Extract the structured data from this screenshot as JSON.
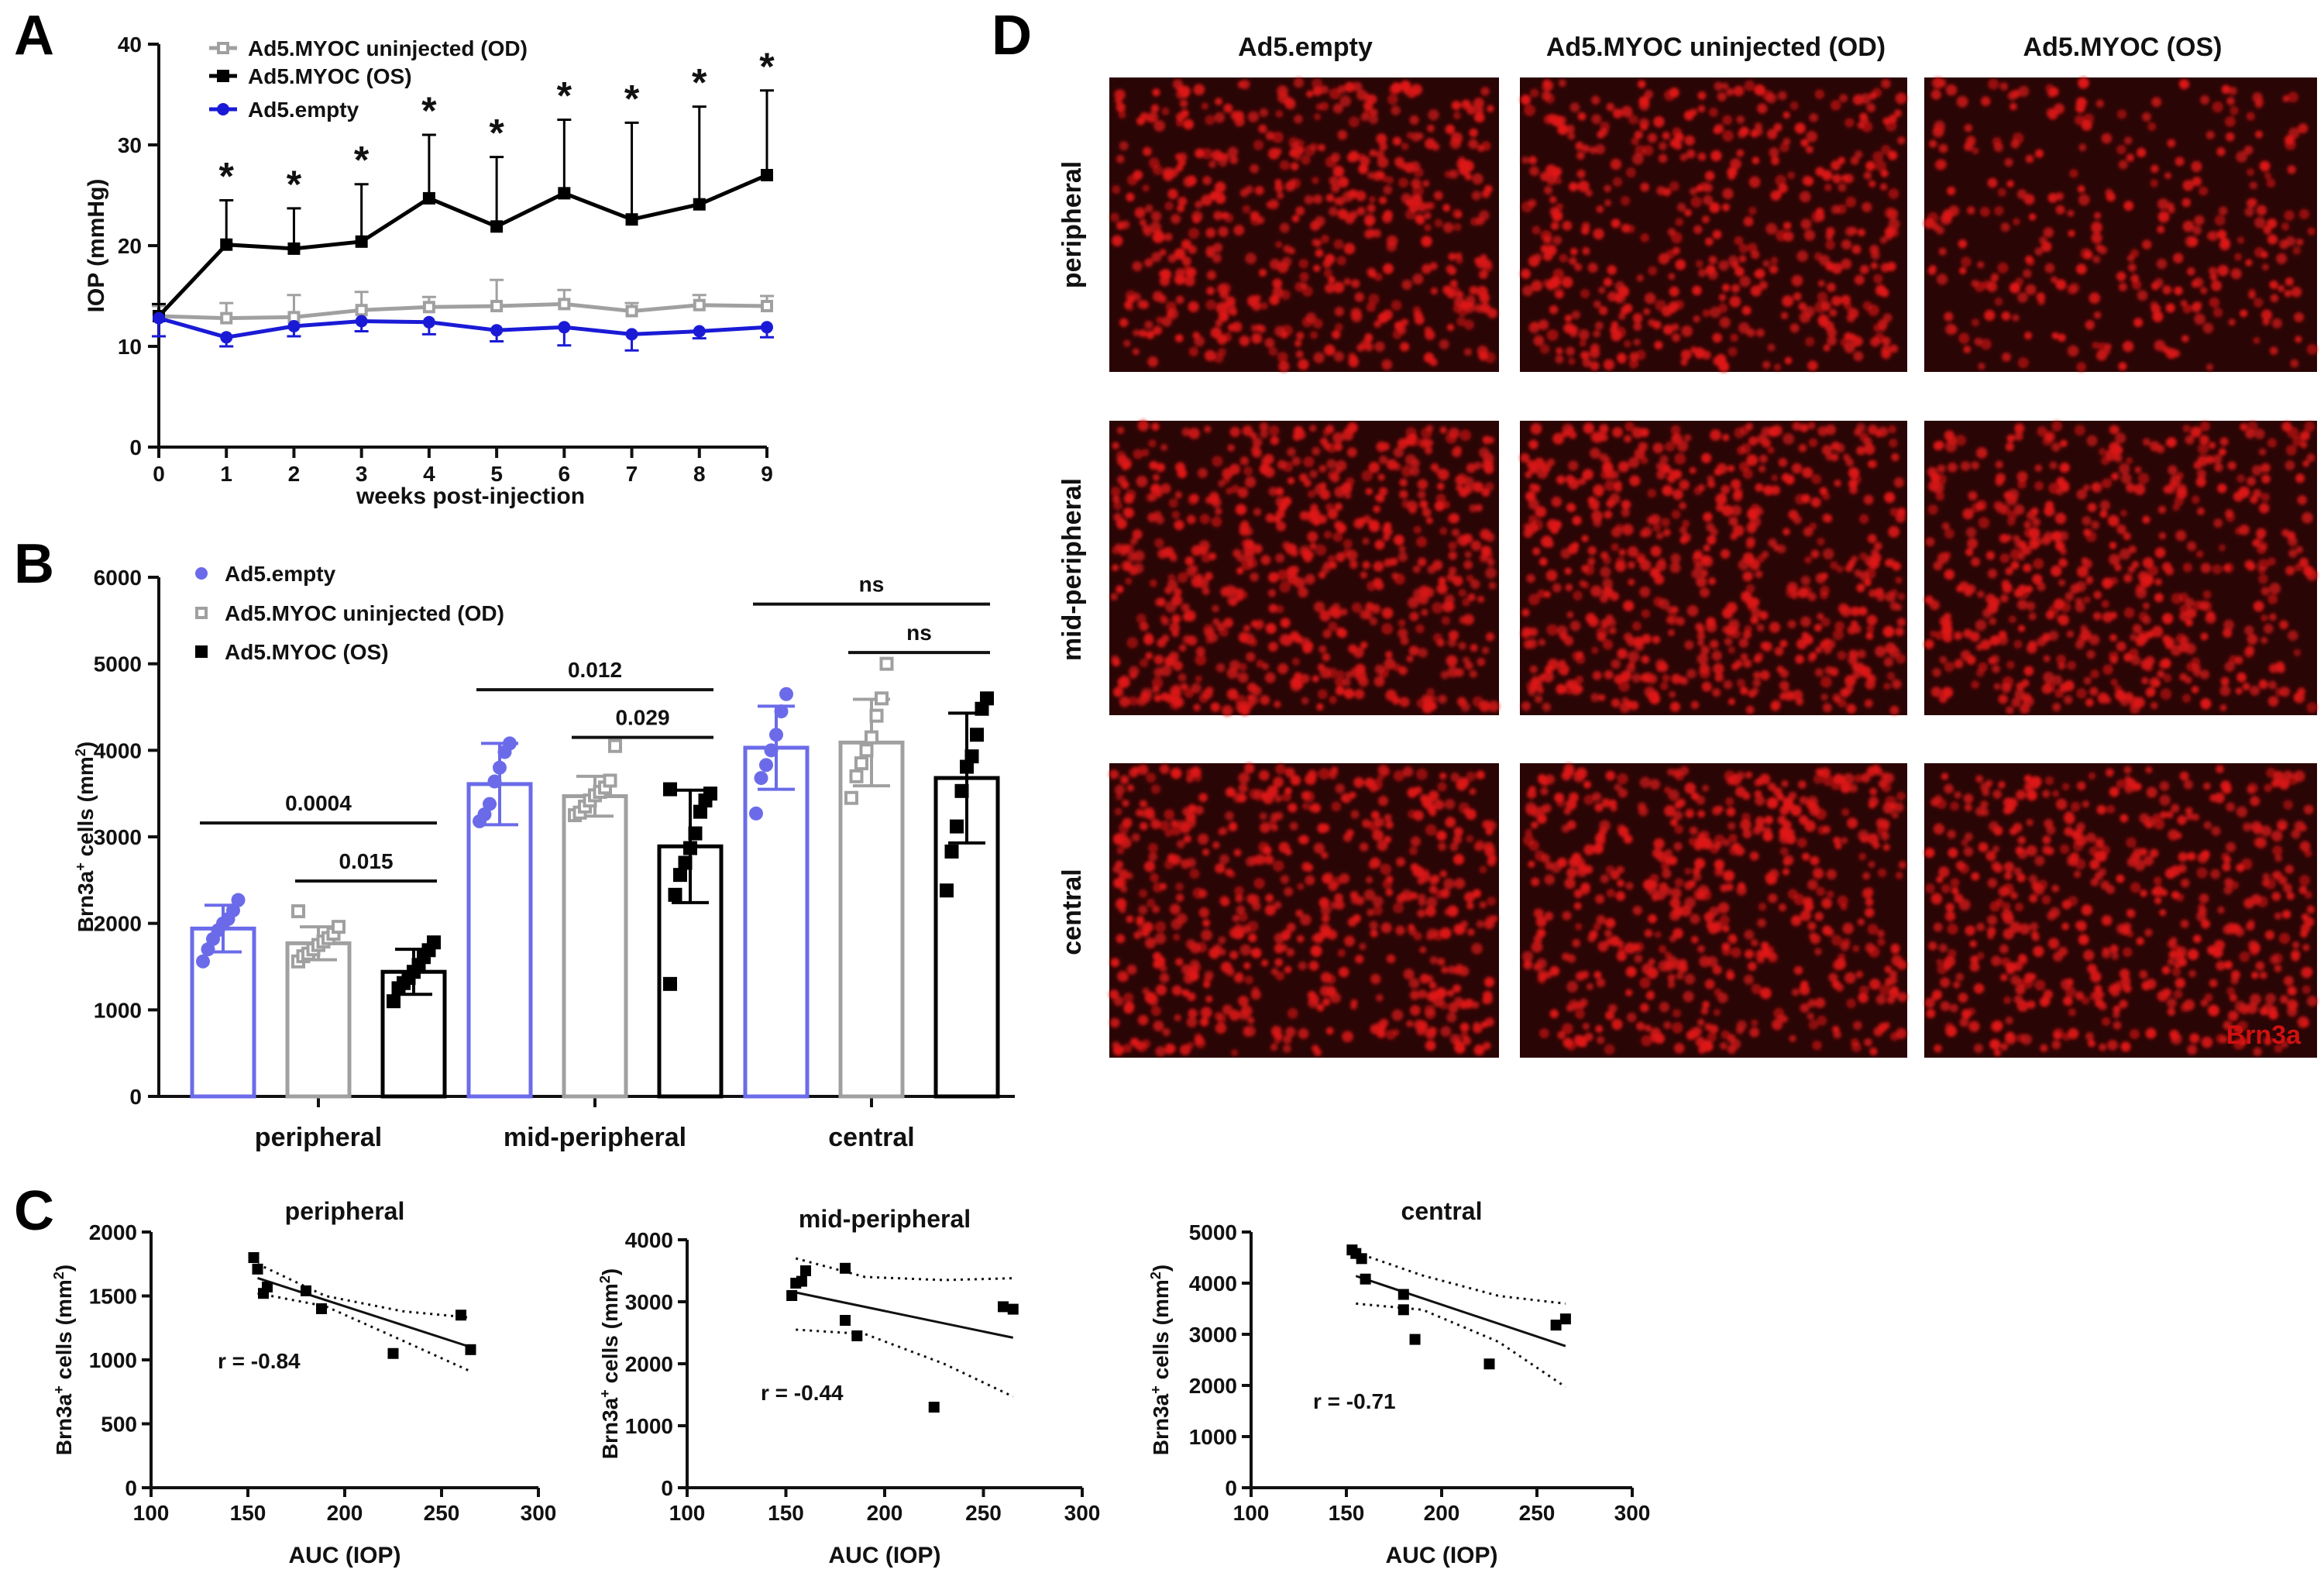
{
  "panel_labels": {
    "a": "A",
    "b": "B",
    "c": "C",
    "d": "D"
  },
  "colors": {
    "empty": "#3333dd",
    "empty_light": "#6b6bea",
    "uninjected": "#a0a0a0",
    "myoc": "#000000",
    "fluor": "#d01010"
  },
  "chart_data": [
    {
      "id": "A",
      "type": "line",
      "xlabel": "weeks post-injection",
      "ylabel": "IOP (mmHg)",
      "xlim": [
        0,
        9
      ],
      "ylim": [
        0,
        40
      ],
      "xticks": [
        0,
        1,
        2,
        3,
        4,
        5,
        6,
        7,
        8,
        9
      ],
      "yticks": [
        0,
        10,
        20,
        30,
        40
      ],
      "x": [
        0,
        1,
        2,
        3,
        4,
        5,
        6,
        7,
        8,
        9
      ],
      "legend_position": "top-left",
      "series": [
        {
          "name": "Ad5.MYOC uninjected (OD)",
          "color": "#a0a0a0",
          "marker": "open-square",
          "values": [
            13.0,
            12.8,
            12.9,
            13.6,
            13.9,
            14.0,
            14.2,
            13.5,
            14.1,
            14.0
          ],
          "sd": [
            1.0,
            1.5,
            2.2,
            1.8,
            1.0,
            2.6,
            1.4,
            0.8,
            1.0,
            1.0
          ]
        },
        {
          "name": "Ad5.MYOC (OS)",
          "color": "#000000",
          "marker": "filled-square",
          "values": [
            13.0,
            20.1,
            19.7,
            20.4,
            24.7,
            21.9,
            25.2,
            22.6,
            24.1,
            27.0
          ],
          "sd": [
            1.2,
            4.4,
            4.0,
            5.7,
            6.3,
            6.9,
            7.3,
            9.6,
            9.7,
            8.4
          ]
        },
        {
          "name": "Ad5.empty",
          "color": "#1a1ad6",
          "marker": "filled-circle",
          "values": [
            12.8,
            10.9,
            12.0,
            12.5,
            12.4,
            11.6,
            11.9,
            11.2,
            11.5,
            11.9
          ],
          "sd": [
            1.8,
            0.9,
            1.0,
            1.0,
            1.2,
            1.1,
            1.8,
            1.6,
            0.7,
            1.0
          ]
        }
      ],
      "significance": {
        "marker": "*",
        "x": [
          1,
          2,
          3,
          4,
          5,
          6,
          7,
          8,
          9
        ]
      }
    },
    {
      "id": "B",
      "type": "bar",
      "ylabel": "Brn3a",
      "ylabel_sup": "+",
      "ylabel_tail": " cells (mm",
      "ylabel_sup2": "2",
      "ylabel_end": ")",
      "ylim": [
        0,
        6000
      ],
      "yticks": [
        0,
        1000,
        2000,
        3000,
        4000,
        5000,
        6000
      ],
      "categories": [
        "peripheral",
        "mid-peripheral",
        "central"
      ],
      "legend_position": "top-left",
      "series": [
        {
          "name": "Ad5.empty",
          "color": "#6b6bea",
          "marker": "filled-circle",
          "values": [
            1940,
            3610,
            4030
          ],
          "sd": [
            270,
            470,
            480
          ],
          "points": [
            [
              1560,
              1700,
              1820,
              1920,
              2000,
              2050,
              2150,
              2270
            ],
            [
              3180,
              3260,
              3380,
              3640,
              3800,
              3980,
              4080
            ],
            [
              3270,
              3680,
              3830,
              4000,
              4180,
              4450,
              4650
            ]
          ]
        },
        {
          "name": "Ad5.MYOC uninjected (OD)",
          "color": "#a0a0a0",
          "marker": "open-square",
          "values": [
            1770,
            3470,
            4090
          ],
          "sd": [
            190,
            230,
            500
          ],
          "points": [
            [
              1560,
              1620,
              1650,
              1700,
              1750,
              1790,
              1830,
              1880,
              1960,
              2140
            ],
            [
              3250,
              3280,
              3350,
              3420,
              3480,
              3520,
              3570,
              3650,
              4050
            ],
            [
              3450,
              3700,
              3850,
              4000,
              4150,
              4400,
              4600,
              5000
            ]
          ]
        },
        {
          "name": "Ad5.MYOC (OS)",
          "color": "#000000",
          "marker": "filled-square",
          "values": [
            1440,
            2890,
            3680
          ],
          "sd": [
            260,
            650,
            750
          ],
          "points": [
            [
              1100,
              1250,
              1310,
              1370,
              1440,
              1520,
              1610,
              1690,
              1780
            ],
            [
              1300,
              2330,
              2560,
              2700,
              2870,
              3040,
              3290,
              3420,
              3500,
              3550
            ],
            [
              2380,
              2830,
              3120,
              3530,
              3810,
              3930,
              4180,
              4480,
              4600
            ]
          ]
        }
      ],
      "comparisons": [
        {
          "group": 0,
          "from": 0,
          "to": 2,
          "label": "0.0004",
          "y": 3160
        },
        {
          "group": 0,
          "from": 1,
          "to": 2,
          "label": "0.015",
          "y": 2490
        },
        {
          "group": 1,
          "from": 0,
          "to": 2,
          "label": "0.012",
          "y": 4700
        },
        {
          "group": 1,
          "from": 1,
          "to": 2,
          "label": "0.029",
          "y": 4150
        },
        {
          "group": 2,
          "from": 0,
          "to": 2,
          "label": "ns",
          "y": 5690
        },
        {
          "group": 2,
          "from": 1,
          "to": 2,
          "label": "ns",
          "y": 5130
        }
      ]
    },
    {
      "id": "C1",
      "type": "scatter",
      "title": "peripheral",
      "xlabel": "AUC (IOP)",
      "ylabel": "Brn3a",
      "xlim": [
        100,
        300
      ],
      "ylim": [
        0,
        2000
      ],
      "xticks": [
        100,
        150,
        200,
        250,
        300
      ],
      "yticks": [
        0,
        500,
        1000,
        1500,
        2000
      ],
      "points": [
        [
          153,
          1800
        ],
        [
          155,
          1710
        ],
        [
          158,
          1520
        ],
        [
          160,
          1570
        ],
        [
          180,
          1540
        ],
        [
          188,
          1400
        ],
        [
          225,
          1050
        ],
        [
          260,
          1350
        ],
        [
          265,
          1080
        ]
      ],
      "fit": {
        "x": [
          155,
          265
        ],
        "y": [
          1640,
          1100
        ]
      },
      "band_upper": {
        "x": [
          155,
          190,
          230,
          265
        ],
        "y": [
          1750,
          1500,
          1380,
          1330
        ]
      },
      "band_lower": {
        "x": [
          155,
          190,
          230,
          265
        ],
        "y": [
          1520,
          1420,
          1150,
          910
        ]
      },
      "annotation": "r = -0.84"
    },
    {
      "id": "C2",
      "type": "scatter",
      "title": "mid-peripheral",
      "xlabel": "AUC (IOP)",
      "ylabel": "Brn3a",
      "xlim": [
        100,
        300
      ],
      "ylim": [
        0,
        4000
      ],
      "xticks": [
        100,
        150,
        200,
        250,
        300
      ],
      "yticks": [
        0,
        1000,
        2000,
        3000,
        4000
      ],
      "points": [
        [
          153,
          3100
        ],
        [
          155,
          3300
        ],
        [
          158,
          3330
        ],
        [
          160,
          3500
        ],
        [
          180,
          3540
        ],
        [
          180,
          2700
        ],
        [
          186,
          2450
        ],
        [
          225,
          1300
        ],
        [
          260,
          2920
        ],
        [
          265,
          2880
        ]
      ],
      "fit": {
        "x": [
          155,
          265
        ],
        "y": [
          3150,
          2420
        ]
      },
      "band_upper": {
        "x": [
          155,
          190,
          230,
          265
        ],
        "y": [
          3700,
          3400,
          3350,
          3380
        ]
      },
      "band_lower": {
        "x": [
          155,
          190,
          230,
          265
        ],
        "y": [
          2550,
          2480,
          2000,
          1470
        ]
      },
      "annotation": "r = -0.44"
    },
    {
      "id": "C3",
      "type": "scatter",
      "title": "central",
      "xlabel": "AUC (IOP)",
      "ylabel": "Brn3a",
      "xlim": [
        100,
        300
      ],
      "ylim": [
        0,
        5000
      ],
      "xticks": [
        100,
        150,
        200,
        250,
        300
      ],
      "yticks": [
        0,
        1000,
        2000,
        3000,
        4000,
        5000
      ],
      "points": [
        [
          153,
          4650
        ],
        [
          155,
          4580
        ],
        [
          158,
          4480
        ],
        [
          160,
          4080
        ],
        [
          180,
          3780
        ],
        [
          180,
          3480
        ],
        [
          186,
          2900
        ],
        [
          225,
          2420
        ],
        [
          260,
          3180
        ],
        [
          265,
          3300
        ]
      ],
      "fit": {
        "x": [
          155,
          265
        ],
        "y": [
          4140,
          2770
        ]
      },
      "band_upper": {
        "x": [
          155,
          190,
          230,
          265
        ],
        "y": [
          4600,
          4150,
          3750,
          3600
        ]
      },
      "band_lower": {
        "x": [
          155,
          190,
          230,
          265
        ],
        "y": [
          3600,
          3480,
          2850,
          1970
        ]
      },
      "annotation": "r = -0.71"
    }
  ],
  "micrographs": {
    "columns": [
      "Ad5.empty",
      "Ad5.MYOC uninjected (OD)",
      "Ad5.MYOC (OS)"
    ],
    "rows": [
      "peripheral",
      "mid-peripheral",
      "central"
    ],
    "stain_label": "Brn3a"
  }
}
